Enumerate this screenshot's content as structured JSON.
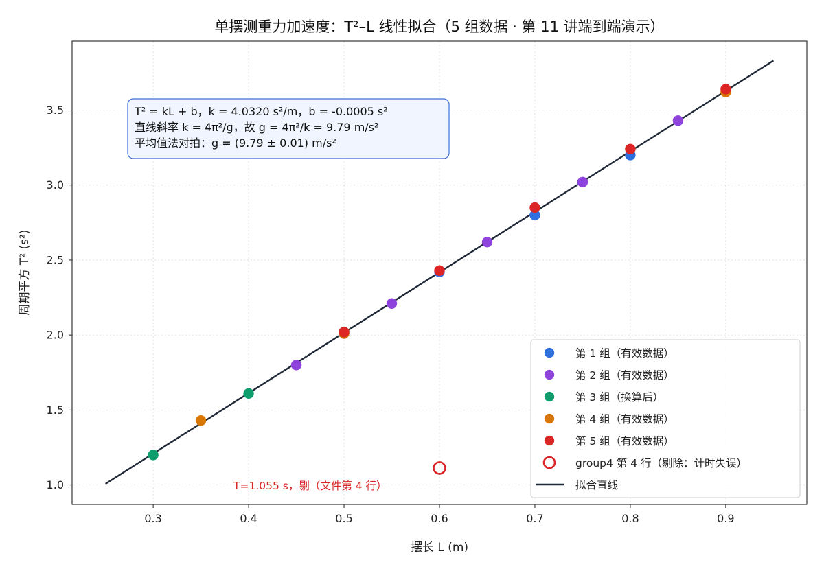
{
  "chart_data": {
    "type": "scatter",
    "title": "单摆测重力加速度：T²–L 线性拟合（5 组数据 · 第 11 讲端到端演示）",
    "xlabel": "摆长 L (m)",
    "ylabel": "周期平方 T² (s²)",
    "xlim": [
      0.215,
      0.985
    ],
    "ylim": [
      0.87,
      3.96
    ],
    "xticks": [
      0.3,
      0.4,
      0.5,
      0.6,
      0.7,
      0.8,
      0.9
    ],
    "xtick_labels": [
      "0.3",
      "0.4",
      "0.5",
      "0.6",
      "0.7",
      "0.8",
      "0.9"
    ],
    "yticks": [
      1.0,
      1.5,
      2.0,
      2.5,
      3.0,
      3.5
    ],
    "ytick_labels": [
      "1.0",
      "1.5",
      "2.0",
      "2.5",
      "3.0",
      "3.5"
    ],
    "grid": true,
    "legend_position": "lower-right",
    "series": [
      {
        "name": "第 1 组（有效数据）",
        "color": "#2f6fdf",
        "marker": "filled-circle",
        "x": [
          0.5,
          0.6,
          0.7,
          0.8
        ],
        "y": [
          2.01,
          2.42,
          2.8,
          3.2
        ]
      },
      {
        "name": "第 2 组（有效数据）",
        "color": "#8e44dc",
        "marker": "filled-circle",
        "x": [
          0.45,
          0.55,
          0.65,
          0.75,
          0.85
        ],
        "y": [
          1.8,
          2.21,
          2.62,
          3.02,
          3.43
        ]
      },
      {
        "name": "第 3 组（换算后）",
        "color": "#0e9e6e",
        "marker": "filled-circle",
        "x": [
          0.3,
          0.4,
          0.5
        ],
        "y": [
          1.2,
          1.61,
          2.02
        ]
      },
      {
        "name": "第 4 组（有效数据）",
        "color": "#d97706",
        "marker": "filled-circle",
        "x": [
          0.35,
          0.5,
          0.9
        ],
        "y": [
          1.43,
          2.01,
          3.62
        ]
      },
      {
        "name": "第 5 组（有效数据）",
        "color": "#dc2626",
        "marker": "filled-circle",
        "x": [
          0.5,
          0.6,
          0.7,
          0.8,
          0.9
        ],
        "y": [
          2.02,
          2.43,
          2.85,
          3.24,
          3.64
        ]
      },
      {
        "name": "group4 第 4 行（剔除：计时失误）",
        "color": "#dc2626",
        "marker": "hollow-circle",
        "x": [
          0.6
        ],
        "y": [
          1.113
        ]
      }
    ],
    "fit_line": {
      "name": "拟合直线",
      "color": "#1f2937",
      "slope": 4.032,
      "intercept": -0.0005,
      "x_range": [
        0.25,
        0.95
      ]
    },
    "info_box": {
      "lines": [
        "T² = kL + b，k = 4.0320 s²/m，b = -0.0005 s²",
        "直线斜率 k = 4π²/g，故 g = 4π²/k = 9.79 m/s²",
        "平均值法对拍：g = (9.79 ± 0.01) m/s²"
      ],
      "border_color": "#3b6fd4",
      "background_color": "#f0f5ff"
    },
    "annotation": {
      "text": "T=1.055 s，剔（文件第 4 行）",
      "color": "#d62828"
    }
  }
}
